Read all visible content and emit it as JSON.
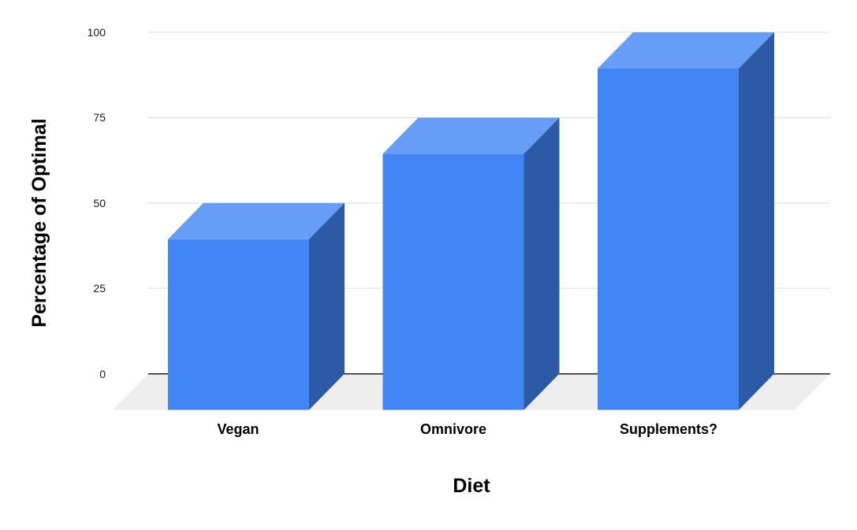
{
  "chart_data": {
    "type": "bar",
    "subtype": "3d-column",
    "categories": [
      "Vegan",
      "Omnivore",
      "Supplements?"
    ],
    "values": [
      50,
      75,
      100
    ],
    "title": "",
    "xlabel": "Diet",
    "ylabel": "Percentage of Optimal",
    "ylim": [
      0,
      100
    ],
    "ytick_values": [
      0,
      25,
      50,
      75,
      100
    ],
    "ytick_labels": [
      "0",
      "25",
      "50",
      "75",
      "100"
    ],
    "grid": true,
    "legend": "none",
    "colors": {
      "bar_front": "#4285f4",
      "bar_top": "#669df6",
      "bar_side": "#2c5aa6",
      "gridline": "#dadada",
      "zero_axis": "#212121",
      "floor": "#eeeeee",
      "background": "#ffffff",
      "text": "#000000"
    }
  }
}
